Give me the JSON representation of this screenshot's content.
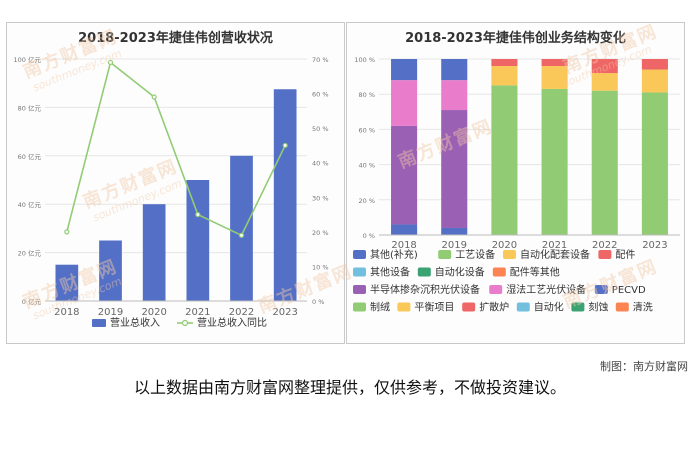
{
  "watermark": {
    "brand": "南方财富网",
    "url": "southmoney.com"
  },
  "credit": "制图：南方财富网",
  "disclaimer": "以上数据由南方财富网整理提供，仅供参考，不做投资建议。",
  "chart_data": [
    {
      "type": "bar",
      "title": "2018-2023年捷佳伟创营收状况",
      "categories": [
        "2018",
        "2019",
        "2020",
        "2021",
        "2022",
        "2023"
      ],
      "series": [
        {
          "name": "营业总收入",
          "type": "bar",
          "axis": "left",
          "values": [
            15,
            25,
            40,
            50,
            60,
            87.5
          ]
        },
        {
          "name": "营业总收入同比",
          "type": "line",
          "axis": "right",
          "values": [
            20,
            69,
            59,
            25,
            19,
            45
          ]
        }
      ],
      "y_left": {
        "range": [
          0,
          100
        ],
        "ticks": [
          0,
          20,
          40,
          60,
          80,
          100
        ],
        "unit": "亿元"
      },
      "y_right": {
        "range": [
          0,
          70
        ],
        "ticks": [
          0,
          10,
          20,
          30,
          40,
          50,
          60,
          70
        ],
        "unit": "%"
      },
      "legend": "bottom",
      "colors": {
        "bar": "#5470c6",
        "line": "#91cc75"
      }
    },
    {
      "type": "bar",
      "stacked": "percent",
      "title": "2018-2023年捷佳伟创业务结构变化",
      "categories": [
        "2018",
        "2019",
        "2020",
        "2021",
        "2022",
        "2023"
      ],
      "y_axis": {
        "range": [
          0,
          100
        ],
        "ticks": [
          0,
          20,
          40,
          60,
          80,
          100
        ],
        "unit": "%"
      },
      "series": [
        {
          "name": "其他(补充)",
          "color": "#5470c6",
          "values": [
            6,
            4,
            0,
            0,
            0,
            0
          ]
        },
        {
          "name": "工艺设备",
          "color": "#91cc75",
          "values": [
            0,
            0,
            0,
            0,
            0,
            0
          ]
        },
        {
          "name": "自动化配套设备",
          "color": "#fac858",
          "values": [
            0,
            0,
            0,
            0,
            0,
            0
          ]
        },
        {
          "name": "配件",
          "color": "#ee6666",
          "values": [
            0,
            0,
            0,
            0,
            0,
            0
          ]
        },
        {
          "name": "其他设备",
          "color": "#73c0de",
          "values": [
            0,
            0,
            0,
            0,
            0,
            0
          ]
        },
        {
          "name": "自动化设备",
          "color": "#3ba272",
          "values": [
            0,
            0,
            0,
            0,
            0,
            0
          ]
        },
        {
          "name": "配件等其他",
          "color": "#fc8452",
          "values": [
            0,
            0,
            0,
            0,
            0,
            0
          ]
        },
        {
          "name": "半导体掺杂沉积光伏设备",
          "color": "#9a60b4",
          "values": [
            56,
            67,
            0,
            0,
            0,
            0
          ]
        },
        {
          "name": "湿法工艺光伏设备",
          "color": "#ea7ccc",
          "values": [
            26,
            17,
            0,
            0,
            0,
            0
          ]
        },
        {
          "name": "PECVD",
          "color": "#5470c6",
          "values": [
            12,
            12,
            0,
            0,
            0,
            0
          ]
        },
        {
          "name": "制绒",
          "color": "#91cc75",
          "values": [
            0,
            0,
            85,
            83,
            82,
            81
          ]
        },
        {
          "name": "平衡项目",
          "color": "#fac858",
          "values": [
            0,
            0,
            11,
            13,
            10,
            13
          ]
        },
        {
          "name": "扩散炉",
          "color": "#ee6666",
          "values": [
            0,
            0,
            4,
            4,
            8,
            6
          ]
        },
        {
          "name": "自动化",
          "color": "#73c0de",
          "values": [
            0,
            0,
            0,
            0,
            0,
            0
          ]
        },
        {
          "name": "刻蚀",
          "color": "#3ba272",
          "values": [
            0,
            0,
            0,
            0,
            0,
            0
          ]
        },
        {
          "name": "清洗",
          "color": "#fc8452",
          "values": [
            0,
            0,
            0,
            0,
            0,
            0
          ]
        }
      ],
      "legend": "bottom"
    }
  ]
}
